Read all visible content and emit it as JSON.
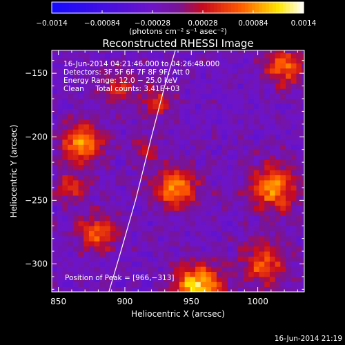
{
  "chart_data": {
    "type": "heatmap",
    "title": "Reconstructed RHESSI Image",
    "xlabel": "Heliocentric X (arcsec)",
    "ylabel": "Heliocentric Y (arcsec)",
    "xlim": [
      845,
      1035
    ],
    "ylim": [
      -322,
      -132
    ],
    "x_ticks": [
      850,
      900,
      950,
      1000
    ],
    "y_ticks": [
      -150,
      -200,
      -250,
      -300
    ],
    "x_tick_labels": [
      "850",
      "900",
      "950",
      "1000"
    ],
    "y_tick_labels": [
      "−150",
      "−200",
      "−250",
      "−300"
    ],
    "colorbar": {
      "min": -0.0014,
      "max": 0.0014,
      "tick_labels": [
        "−0.0014",
        "−0.00084",
        "−0.00028",
        "0.00028",
        "0.00084",
        "0.0014"
      ],
      "unit_label": "(photons cm⁻² s⁻¹ asec⁻²)"
    },
    "annotations": [
      "16-Jun-2014 04:21:46.000 to 04:26:48.000",
      "Detectors: 3F 5F 6F 7F 8F 9F, Att 0",
      "Energy Range: 12.0 − 25.0 keV",
      "Clean     Total counts: 3.41E+03"
    ],
    "peak_label": "Position of Peak = [966,−313]",
    "grid": false,
    "pixel_size_arcsec": 4,
    "sources": [
      {
        "x": 955,
        "y": -318,
        "peak": 0.0014,
        "sigma": 12
      },
      {
        "x": 938,
        "y": -240,
        "peak": 0.0011,
        "sigma": 11
      },
      {
        "x": 868,
        "y": -205,
        "peak": 0.0011,
        "sigma": 11
      },
      {
        "x": 1012,
        "y": -240,
        "peak": 0.001,
        "sigma": 13
      },
      {
        "x": 1020,
        "y": -145,
        "peak": 0.00095,
        "sigma": 10
      },
      {
        "x": 880,
        "y": -275,
        "peak": 0.00085,
        "sigma": 10
      },
      {
        "x": 1005,
        "y": -300,
        "peak": 0.0008,
        "sigma": 12
      },
      {
        "x": 925,
        "y": -172,
        "peak": 0.0006,
        "sigma": 9
      },
      {
        "x": 895,
        "y": -160,
        "peak": 0.0006,
        "sigma": 9
      },
      {
        "x": 915,
        "y": -210,
        "peak": 0.00045,
        "sigma": 8
      },
      {
        "x": 860,
        "y": -240,
        "peak": 0.0006,
        "sigma": 8
      }
    ],
    "limb_curve": {
      "x": [
        888,
        897,
        908,
        920,
        930,
        938
      ],
      "y": [
        -322,
        -290,
        -250,
        -200,
        -160,
        -132
      ]
    }
  },
  "footer": {
    "timestamp": "16-Jun-2014 21:19"
  }
}
